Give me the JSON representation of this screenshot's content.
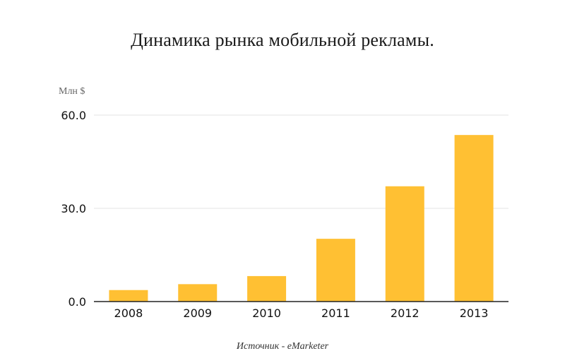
{
  "chart_data": {
    "type": "bar",
    "title": "Динамика рынка мобильной рекламы.",
    "ylabel": "Млн $",
    "xlabel": "",
    "categories": [
      "2008",
      "2009",
      "2010",
      "2011",
      "2012",
      "2013"
    ],
    "values": [
      3.7,
      5.6,
      8.2,
      20.2,
      37.1,
      53.6
    ],
    "ylim": [
      0,
      60
    ],
    "yticks": [
      0,
      30,
      60
    ],
    "ytick_labels": [
      "0.0",
      "30.0",
      "60.0"
    ],
    "grid": true,
    "bar_color": "#FFC033",
    "source": "Источник - eMarketer"
  }
}
